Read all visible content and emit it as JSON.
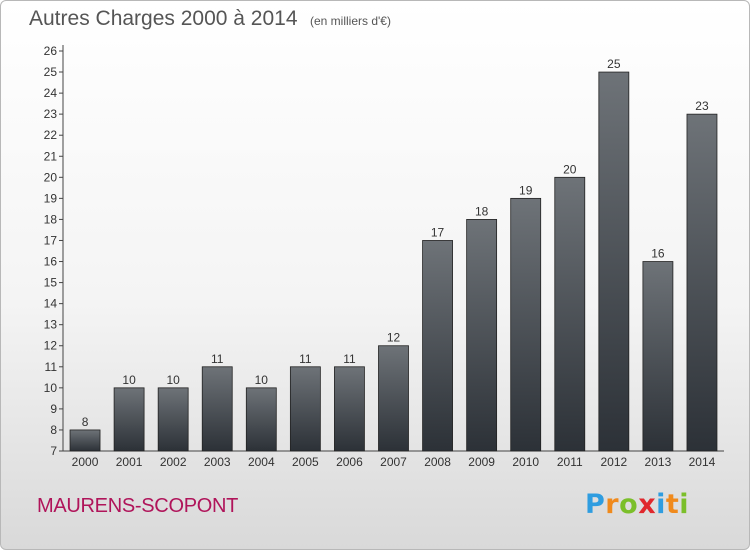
{
  "header": {
    "title": "Autres Charges 2000 à 2014",
    "unit_note": "(en milliers d'€)"
  },
  "footer": {
    "commune": "MAURENS-SCOPONT",
    "logo_letters": [
      "P",
      "r",
      "o",
      "x",
      "i",
      "t",
      "i"
    ],
    "logo_colors": [
      "#2f9de0",
      "#f08a1c",
      "#7bbf2a",
      "#e0282d",
      "#2f9de0",
      "#f08a1c",
      "#7bbf2a"
    ]
  },
  "colors": {
    "bar_top": "#6e7378",
    "bar_bottom": "#2c3137",
    "commune_text": "#b0145a"
  },
  "chart_data": {
    "type": "bar",
    "title": "Autres Charges 2000 à 2014",
    "ylabel": "",
    "xlabel": "",
    "categories": [
      "2000",
      "2001",
      "2002",
      "2003",
      "2004",
      "2005",
      "2006",
      "2007",
      "2008",
      "2009",
      "2010",
      "2011",
      "2012",
      "2013",
      "2014"
    ],
    "values": [
      8,
      10,
      10,
      11,
      10,
      11,
      11,
      12,
      17,
      18,
      19,
      20,
      25,
      16,
      23
    ],
    "ylim": [
      7,
      26
    ],
    "yticks": [
      7,
      8,
      9,
      10,
      11,
      12,
      13,
      14,
      15,
      16,
      17,
      18,
      19,
      20,
      21,
      22,
      23,
      24,
      25,
      26
    ],
    "grid": false,
    "data_labels": true
  }
}
